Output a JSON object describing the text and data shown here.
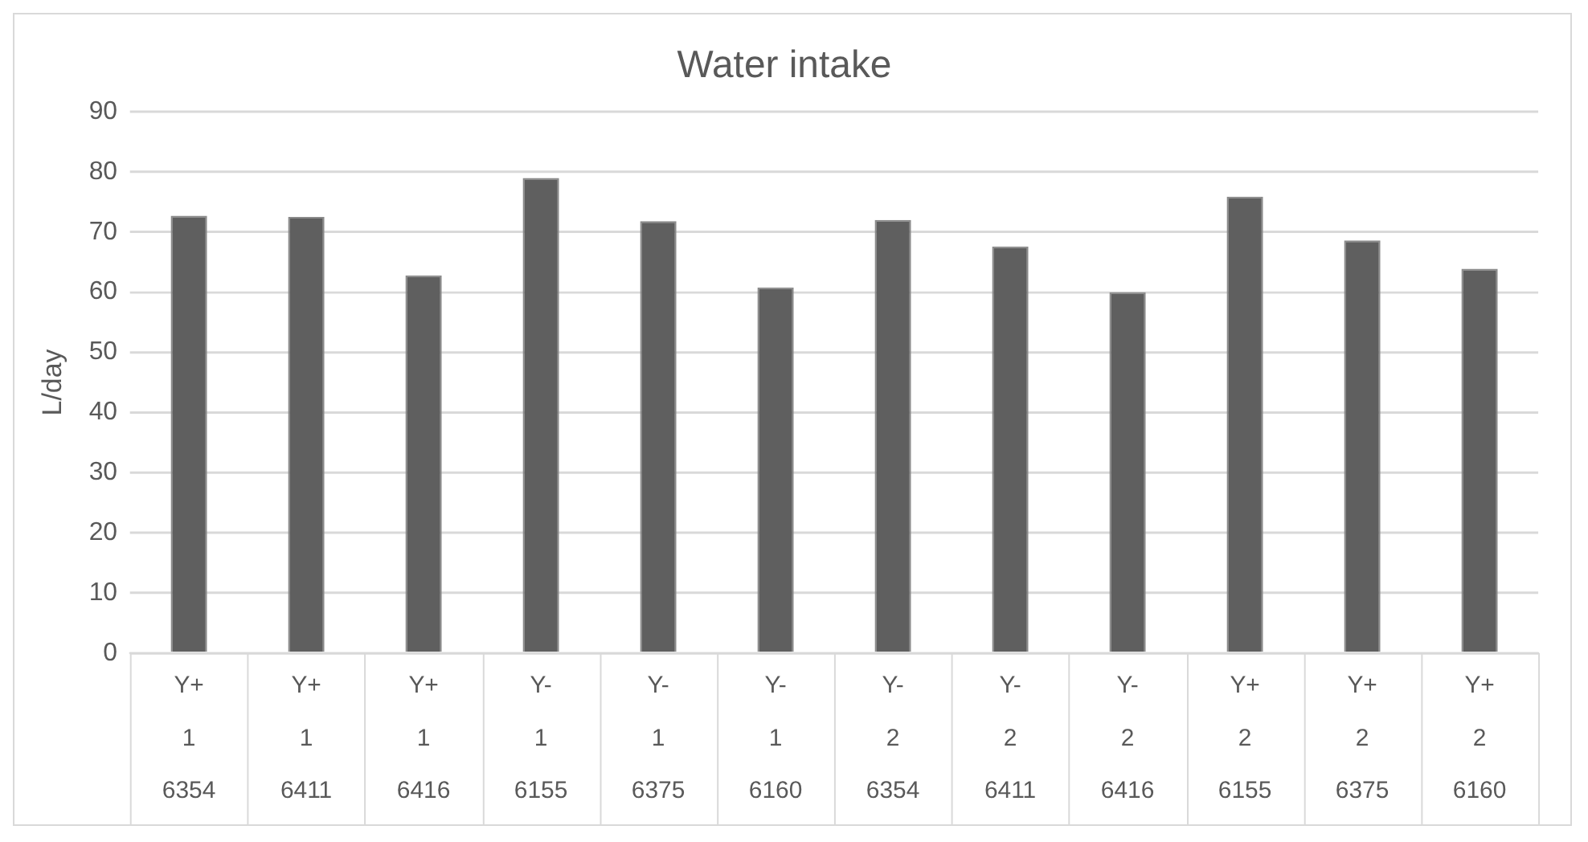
{
  "chart_data": {
    "type": "bar",
    "title": "Water intake",
    "ylabel": "L/day",
    "categories": [
      "Y+\n1\n6354",
      "Y+\n1\n6411",
      "Y+\n1\n6416",
      "Y-\n1\n6155",
      "Y-\n1\n6375",
      "Y-\n1\n6160",
      "Y-\n2\n6354",
      "Y-\n2\n6411",
      "Y-\n2\n6416",
      "Y+\n2\n6155",
      "Y+\n2\n6375",
      "Y+\n2\n6160"
    ],
    "values": [
      72.7,
      72.5,
      62.8,
      79.0,
      71.8,
      60.8,
      72.0,
      67.6,
      60.0,
      75.9,
      68.6,
      63.9
    ],
    "color": "#5f5f5f",
    "ylim": [
      0,
      90
    ],
    "yticks": [
      0,
      10,
      20,
      30,
      40,
      50,
      60,
      70,
      80,
      90
    ],
    "grid": "y",
    "legend": false
  }
}
